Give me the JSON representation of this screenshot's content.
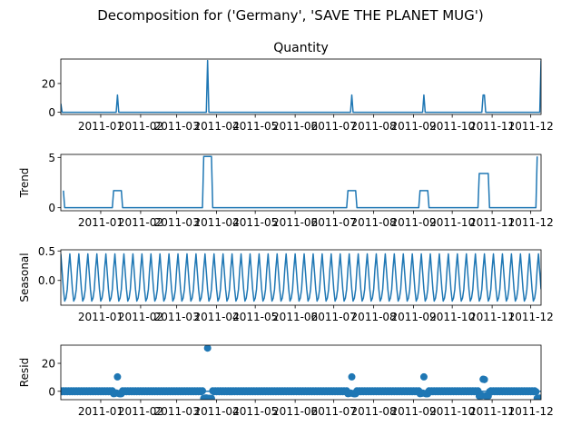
{
  "figure_title": "Decomposition for ('Germany', 'SAVE THE PLANET MUG')",
  "colors": {
    "series": "#1f77b4",
    "axis": "#000000",
    "background": "#ffffff"
  },
  "x_tick_labels": [
    "2011-01",
    "2011-02",
    "2011-03",
    "2011-04",
    "2011-05",
    "2011-06",
    "2011-07",
    "2011-08",
    "2011-09",
    "2011-10",
    "2011-11",
    "2011-12"
  ],
  "chart_data": [
    {
      "type": "line",
      "title": "Quantity",
      "ylabel": "",
      "xlim": [
        "2010-12-01",
        "2011-12-09"
      ],
      "ylim": [
        -1.5,
        37
      ],
      "yticks": [
        0,
        20
      ],
      "x_tick_dates": [
        "2011-01-01",
        "2011-02-01",
        "2011-03-01",
        "2011-04-01",
        "2011-05-01",
        "2011-06-01",
        "2011-07-01",
        "2011-08-01",
        "2011-09-01",
        "2011-10-01",
        "2011-11-01",
        "2011-12-01"
      ],
      "series": [
        {
          "points": [
            [
              "2010-12-01",
              6
            ],
            [
              "2010-12-02",
              0
            ],
            [
              "2011-01-13",
              0
            ],
            [
              "2011-01-14",
              12
            ],
            [
              "2011-01-15",
              0
            ],
            [
              "2011-03-24",
              0
            ],
            [
              "2011-03-25",
              36
            ],
            [
              "2011-03-26",
              0
            ],
            [
              "2011-07-14",
              0
            ],
            [
              "2011-07-15",
              12
            ],
            [
              "2011-07-16",
              0
            ],
            [
              "2011-09-08",
              0
            ],
            [
              "2011-09-09",
              12
            ],
            [
              "2011-09-10",
              0
            ],
            [
              "2011-10-24",
              0
            ],
            [
              "2011-10-25",
              12
            ],
            [
              "2011-10-26",
              12
            ],
            [
              "2011-10-27",
              0
            ],
            [
              "2011-12-08",
              0
            ],
            [
              "2011-12-09",
              36
            ]
          ]
        }
      ]
    },
    {
      "type": "line",
      "title": "",
      "ylabel": "Trend",
      "xlim": [
        "2010-12-01",
        "2011-12-09"
      ],
      "ylim": [
        -0.3,
        5.3
      ],
      "yticks": [
        0,
        5
      ],
      "x_tick_dates": [
        "2011-01-01",
        "2011-02-01",
        "2011-03-01",
        "2011-04-01",
        "2011-05-01",
        "2011-06-01",
        "2011-07-01",
        "2011-08-01",
        "2011-09-01",
        "2011-10-01",
        "2011-11-01",
        "2011-12-01"
      ],
      "series": [
        {
          "points": [
            [
              "2010-12-03",
              1.7
            ],
            [
              "2010-12-04",
              0
            ],
            [
              "2011-01-10",
              0
            ],
            [
              "2011-01-11",
              1.7
            ],
            [
              "2011-01-17",
              1.7
            ],
            [
              "2011-01-18",
              0
            ],
            [
              "2011-03-21",
              0
            ],
            [
              "2011-03-22",
              5.1
            ],
            [
              "2011-03-28",
              5.1
            ],
            [
              "2011-03-29",
              0
            ],
            [
              "2011-07-11",
              0
            ],
            [
              "2011-07-12",
              1.7
            ],
            [
              "2011-07-18",
              1.7
            ],
            [
              "2011-07-19",
              0
            ],
            [
              "2011-09-05",
              0
            ],
            [
              "2011-09-06",
              1.7
            ],
            [
              "2011-09-12",
              1.7
            ],
            [
              "2011-09-13",
              0
            ],
            [
              "2011-10-21",
              0
            ],
            [
              "2011-10-22",
              3.4
            ],
            [
              "2011-10-29",
              3.4
            ],
            [
              "2011-10-30",
              0
            ],
            [
              "2011-12-05",
              0
            ],
            [
              "2011-12-06",
              5.1
            ]
          ]
        }
      ]
    },
    {
      "type": "line",
      "title": "",
      "ylabel": "Seasonal",
      "xlim": [
        "2010-12-01",
        "2011-12-09"
      ],
      "ylim": [
        -0.42,
        0.52
      ],
      "yticks": [
        0.0,
        0.5
      ],
      "ytick_labels": [
        "0.0",
        "0.5"
      ],
      "x_tick_dates": [
        "2011-01-01",
        "2011-02-01",
        "2011-03-01",
        "2011-04-01",
        "2011-05-01",
        "2011-06-01",
        "2011-07-01",
        "2011-08-01",
        "2011-09-01",
        "2011-10-01",
        "2011-11-01",
        "2011-12-01"
      ],
      "pattern": {
        "start": "2010-12-01",
        "end": "2011-12-09",
        "period_days": 7,
        "cycle": [
          0.45,
          0.15,
          -0.15,
          -0.35,
          -0.3,
          -0.15,
          0.2
        ]
      }
    },
    {
      "type": "scatter",
      "title": "",
      "ylabel": "Resid",
      "xlim": [
        "2010-12-01",
        "2011-12-09"
      ],
      "ylim": [
        -6,
        33
      ],
      "yticks": [
        0,
        20
      ],
      "zero_line": true,
      "x_tick_dates": [
        "2011-01-01",
        "2011-02-01",
        "2011-03-01",
        "2011-04-01",
        "2011-05-01",
        "2011-06-01",
        "2011-07-01",
        "2011-08-01",
        "2011-09-01",
        "2011-10-01",
        "2011-11-01",
        "2011-12-01"
      ],
      "baseline_noise": [
        0.3,
        -0.3
      ],
      "baseline_start": "2010-12-01",
      "baseline_end": "2011-12-09",
      "special_points": [
        [
          "2011-01-11",
          -1.7
        ],
        [
          "2011-01-12",
          -1.5
        ],
        [
          "2011-01-13",
          -1.2
        ],
        [
          "2011-01-14",
          10.3
        ],
        [
          "2011-01-15",
          -1.6
        ],
        [
          "2011-01-16",
          -1.8
        ],
        [
          "2011-01-17",
          -1.7
        ],
        [
          "2011-03-22",
          -5.1
        ],
        [
          "2011-03-23",
          -4.9
        ],
        [
          "2011-03-24",
          -4.8
        ],
        [
          "2011-03-25",
          30.9
        ],
        [
          "2011-03-26",
          -5.0
        ],
        [
          "2011-03-27",
          -5.2
        ],
        [
          "2011-03-28",
          -5.1
        ],
        [
          "2011-07-12",
          -1.7
        ],
        [
          "2011-07-13",
          -1.5
        ],
        [
          "2011-07-14",
          -1.3
        ],
        [
          "2011-07-15",
          10.3
        ],
        [
          "2011-07-16",
          -1.6
        ],
        [
          "2011-07-17",
          -1.8
        ],
        [
          "2011-07-18",
          -1.7
        ],
        [
          "2011-09-06",
          -1.7
        ],
        [
          "2011-09-07",
          -1.5
        ],
        [
          "2011-09-08",
          -1.3
        ],
        [
          "2011-09-09",
          10.3
        ],
        [
          "2011-09-10",
          -1.6
        ],
        [
          "2011-09-11",
          -1.8
        ],
        [
          "2011-09-12",
          -1.7
        ],
        [
          "2011-10-22",
          -3.4
        ],
        [
          "2011-10-23",
          -3.2
        ],
        [
          "2011-10-24",
          -3.1
        ],
        [
          "2011-10-25",
          8.6
        ],
        [
          "2011-10-26",
          8.4
        ],
        [
          "2011-10-27",
          -3.3
        ],
        [
          "2011-10-28",
          -3.5
        ],
        [
          "2011-10-29",
          -3.4
        ],
        [
          "2011-12-06",
          -5.0
        ],
        [
          "2011-12-07",
          -5.1
        ],
        [
          "2011-12-08",
          -4.9
        ],
        [
          "2011-12-09",
          -5.1
        ]
      ]
    }
  ]
}
